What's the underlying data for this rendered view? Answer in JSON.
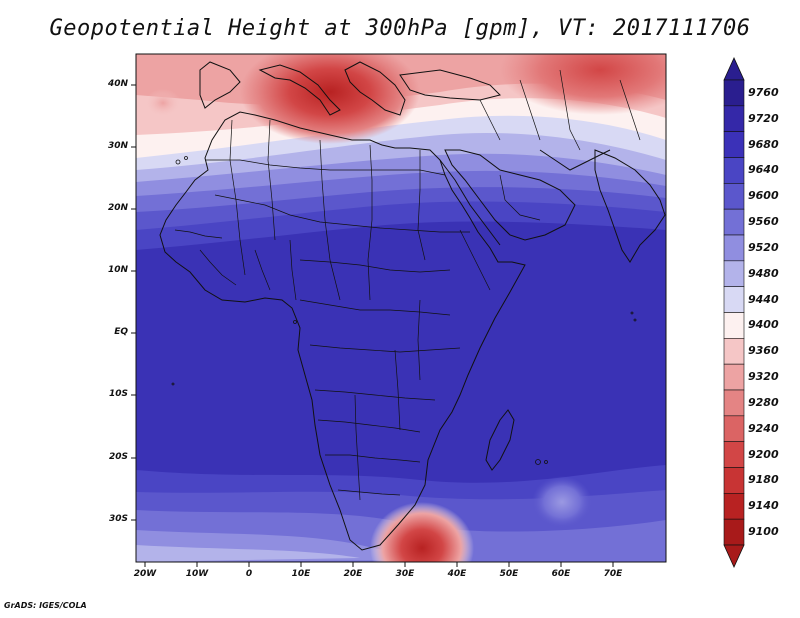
{
  "title": "Geopotential Height at 300hPa [gpm], VT: 2017111706",
  "footer": "GrADS: IGES/COLA",
  "lat_labels": [
    "40N",
    "30N",
    "20N",
    "10N",
    "EQ",
    "10S",
    "20S",
    "30S"
  ],
  "lon_labels": [
    "20W",
    "10W",
    "0",
    "10E",
    "20E",
    "30E",
    "40E",
    "50E",
    "60E",
    "70E"
  ],
  "colorbar": {
    "levels": [
      "9760",
      "9720",
      "9680",
      "9640",
      "9600",
      "9560",
      "9520",
      "9480",
      "9440",
      "9400",
      "9360",
      "9320",
      "9280",
      "9240",
      "9200",
      "9180",
      "9140",
      "9100"
    ],
    "colors": [
      "#2a1e8f",
      "#3428a8",
      "#3b31b8",
      "#4a45c4",
      "#5b57cc",
      "#7370d6",
      "#908ee0",
      "#b3b3ea",
      "#d8d9f4",
      "#fdf1f0",
      "#f5c6c6",
      "#eda3a3",
      "#e48484",
      "#db6464",
      "#d24646",
      "#c83434",
      "#b82222",
      "#a81a1a"
    ]
  },
  "colors": {
    "deep_blue": "#3a32b5",
    "mid_blue": "#5a56cc",
    "light_blue": "#9b99e2",
    "white_band": "#f4f4fb",
    "light_red": "#f3c2c2",
    "mid_red": "#e38585",
    "deep_red": "#c33030",
    "coastline": "#111111"
  }
}
